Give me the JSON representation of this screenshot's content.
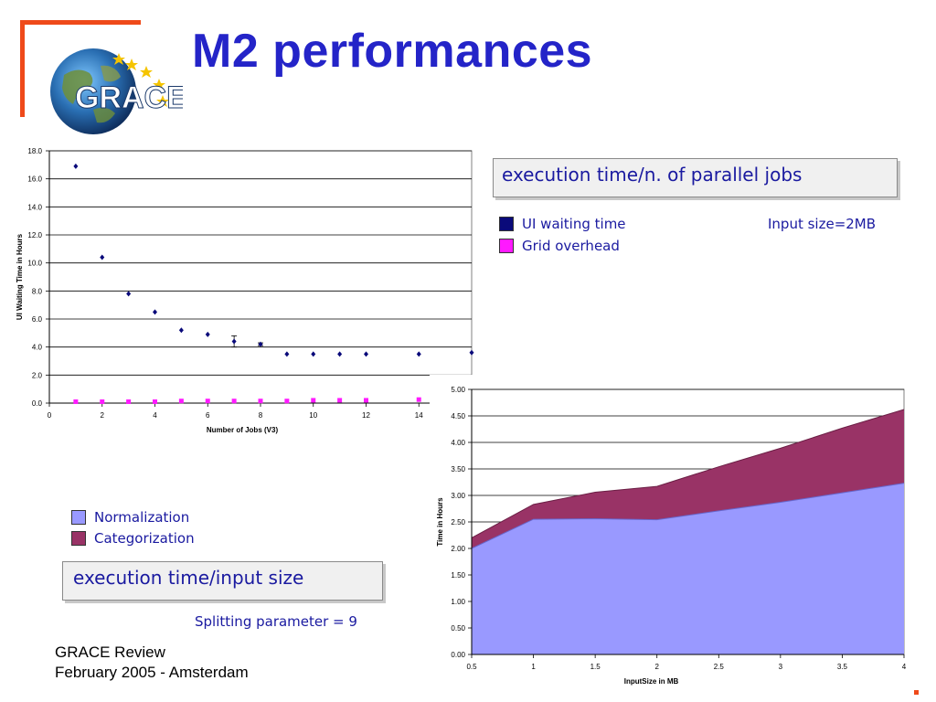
{
  "slide": {
    "title": "M2 performances",
    "logo_text": "GRACE",
    "accent_color": "#ef4a1a",
    "title_color": "#2424c8"
  },
  "jobs_panel": {
    "label": "execution time/n. of parallel jobs",
    "legend": [
      {
        "name": "UI waiting time",
        "color": "#0a0a7a"
      },
      {
        "name": "Grid overhead",
        "color": "#ff19ff"
      }
    ],
    "note": "Input size=2MB"
  },
  "size_panel": {
    "label": "execution time/input size",
    "legend": [
      {
        "name": "Normalization",
        "color": "#9999ff"
      },
      {
        "name": "Categorization",
        "color": "#993366"
      }
    ],
    "note": "Splitting parameter = 9"
  },
  "footer": {
    "line1": "GRACE Review",
    "line2": "February 2005 - Amsterdam"
  },
  "chart_data": [
    {
      "type": "scatter",
      "xlabel": "Number of Jobs (V3)",
      "ylabel": "UI Waiting Time in Hours",
      "xlim": [
        0,
        16
      ],
      "ylim": [
        0,
        18
      ],
      "x_ticks": [
        0,
        2,
        4,
        6,
        8,
        10,
        12,
        14
      ],
      "y_ticks": [
        0.0,
        2.0,
        4.0,
        6.0,
        8.0,
        10.0,
        12.0,
        14.0,
        16.0,
        18.0
      ],
      "grid": true,
      "series": [
        {
          "name": "UI waiting time",
          "color": "#0a0a7a",
          "x": [
            1,
            2,
            3,
            4,
            5,
            6,
            7,
            8,
            9,
            10,
            11,
            12,
            14,
            16
          ],
          "y": [
            16.9,
            10.4,
            7.8,
            6.5,
            5.2,
            4.9,
            4.4,
            4.2,
            3.5,
            3.5,
            3.5,
            3.5,
            3.5,
            3.6
          ],
          "error": [
            0,
            0,
            0,
            0,
            0,
            0,
            0.4,
            0.1,
            0,
            0,
            0,
            0,
            0,
            0
          ]
        },
        {
          "name": "Grid overhead",
          "color": "#ff19ff",
          "x": [
            1,
            2,
            3,
            4,
            5,
            6,
            7,
            8,
            9,
            10,
            11,
            12,
            14
          ],
          "y": [
            0.1,
            0.1,
            0.1,
            0.1,
            0.15,
            0.15,
            0.15,
            0.15,
            0.15,
            0.2,
            0.2,
            0.2,
            0.25
          ]
        }
      ]
    },
    {
      "type": "area",
      "stacked": true,
      "xlabel": "InputSize in MB",
      "ylabel": "Time in Hours",
      "xlim": [
        0.5,
        4
      ],
      "ylim": [
        0,
        5
      ],
      "x_ticks": [
        0.5,
        1,
        1.5,
        2,
        2.5,
        3,
        3.5,
        4
      ],
      "y_ticks": [
        0.0,
        0.5,
        1.0,
        1.5,
        2.0,
        2.5,
        3.0,
        3.5,
        4.0,
        4.5,
        5.0
      ],
      "grid": true,
      "x": [
        0.5,
        1,
        1.5,
        2,
        2.5,
        3,
        3.5,
        4
      ],
      "series": [
        {
          "name": "Normalization",
          "color": "#9999ff",
          "values": [
            2.0,
            2.55,
            2.56,
            2.54,
            2.71,
            2.87,
            3.05,
            3.23
          ]
        },
        {
          "name": "Categorization",
          "color": "#993366",
          "values": [
            0.2,
            0.28,
            0.5,
            0.63,
            0.83,
            1.02,
            1.22,
            1.39
          ]
        }
      ]
    }
  ]
}
